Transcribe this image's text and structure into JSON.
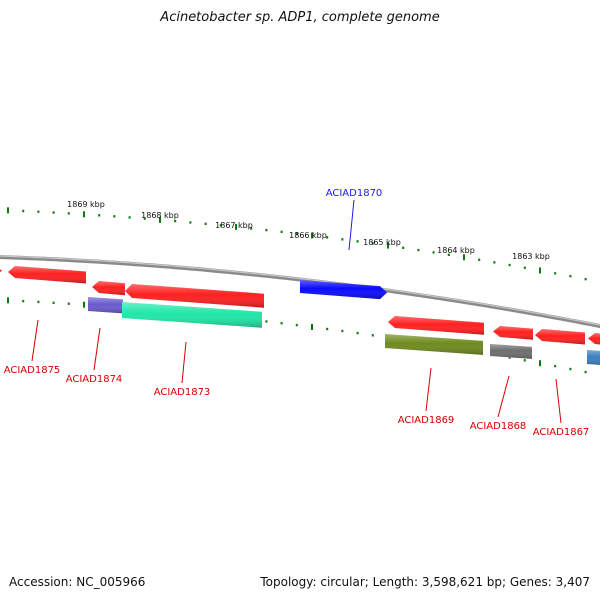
{
  "title": "Acinetobacter sp. ADP1, complete genome",
  "footer": {
    "accession": "Accession: NC_005966",
    "summary": "Topology: circular; Length: 3,598,621 bp; Genes: 3,407"
  },
  "colors": {
    "backbone": "#8a8a8a",
    "tick": "#0b7a0b",
    "callout_reverse": "#d40000",
    "callout_forward": "#1a1ae6"
  },
  "scale_labels": [
    "1869 kbp",
    "1868 kbp",
    "1867 kbp",
    "1866 kbp",
    "1865 kbp",
    "1864 kbp",
    "1863 kbp"
  ],
  "genes": [
    {
      "label": "ACIAD1870",
      "strand": "forward",
      "color": "#0000ff"
    },
    {
      "label": "ACIAD1875",
      "strand": "reverse",
      "color": "#ff0000"
    },
    {
      "label": "ACIAD1874",
      "strand": "reverse",
      "color": "#ff0000"
    },
    {
      "label": "ACIAD1873",
      "strand": "reverse",
      "color": "#ff0000"
    },
    {
      "label": "ACIAD1869",
      "strand": "reverse",
      "color": "#ff0000"
    },
    {
      "label": "ACIAD1868",
      "strand": "reverse",
      "color": "#ff0000"
    },
    {
      "label": "ACIAD1867",
      "strand": "reverse",
      "color": "#ff0000"
    }
  ],
  "features": [
    {
      "type": "cds",
      "strand": "reverse",
      "color": "#ff2020"
    },
    {
      "type": "cds",
      "strand": "reverse",
      "color": "#ff2020"
    },
    {
      "type": "cds",
      "strand": "reverse",
      "color": "#ff2020"
    },
    {
      "type": "cds",
      "strand": "reverse",
      "color": "#ff2020"
    },
    {
      "type": "cds",
      "strand": "forward",
      "color": "#0a0aff"
    },
    {
      "type": "cds",
      "strand": "reverse",
      "color": "#ff2020"
    },
    {
      "type": "cds",
      "strand": "reverse",
      "color": "#ff2020"
    },
    {
      "type": "cds",
      "strand": "reverse",
      "color": "#ff2020"
    },
    {
      "type": "cds",
      "strand": "reverse",
      "color": "#ff2020"
    },
    {
      "type": "feature",
      "strand": "reverse",
      "color": "#6a5acd"
    },
    {
      "type": "feature",
      "strand": "reverse",
      "color": "#1fe8a6"
    },
    {
      "type": "feature",
      "strand": "reverse",
      "color": "#6e8b1e"
    },
    {
      "type": "feature",
      "strand": "reverse",
      "color": "#6e6e6e"
    },
    {
      "type": "feature",
      "strand": "reverse",
      "color": "#3a7fbf"
    }
  ]
}
